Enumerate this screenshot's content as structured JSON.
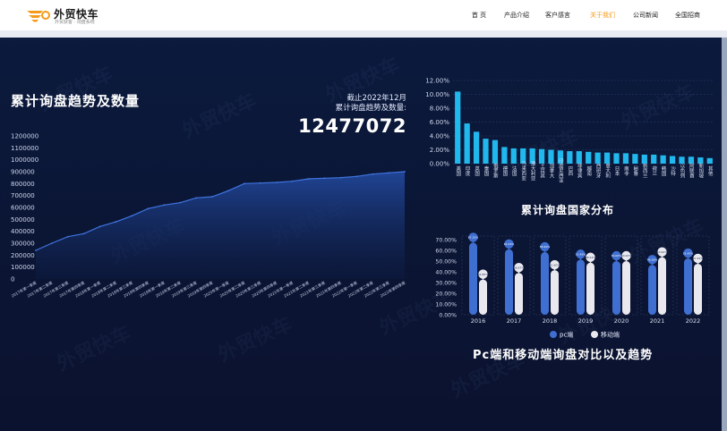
{
  "header": {
    "logo_title": "外贸快车",
    "logo_sub": "外贸获客 · 询盘系统",
    "nav": [
      {
        "label": "首 页",
        "active": false
      },
      {
        "label": "产品介绍",
        "active": false
      },
      {
        "label": "客户感言",
        "active": false
      },
      {
        "label": "关于我们",
        "active": true
      },
      {
        "label": "公司新闻",
        "active": false
      },
      {
        "label": "全国招商",
        "active": false
      }
    ]
  },
  "watermark": "外贸快车",
  "summary": {
    "title": "累计询盘趋势及数量",
    "as_of": "截止2022年12月",
    "label": "累计询盘趋势及数量:",
    "total": "12477072"
  },
  "titles": {
    "country": "累计询盘国家分布",
    "device": "Pc端和移动端询盘对比以及趋势"
  },
  "colors": {
    "accent": "#f39b1a",
    "bar_cyan": "#21b8ee",
    "pc_blue": "#3f6fd1",
    "mobile_white": "#e8e8ee",
    "area_fill": "#1b3c85"
  },
  "chart_data": [
    {
      "type": "area",
      "title": "",
      "y_ticks": [
        "1200000",
        "1100000",
        "1000000",
        "900000",
        "800000",
        "700000",
        "600000",
        "500000",
        "400000",
        "300000",
        "200000",
        "100000",
        "0"
      ],
      "ylim": [
        0,
        1200000
      ],
      "categories": [
        "2017年第一季度",
        "2017年第二季度",
        "2017年第三季度",
        "2017年第四季度",
        "2018年第一季度",
        "2018年第二季度",
        "2018年第三季度",
        "2018年第四季度",
        "2019年第一季度",
        "2019年第二季度",
        "2019年第三季度",
        "2019年第四季度",
        "2020年第一季度",
        "2020年第二季度",
        "2020年第三季度",
        "2020年第四季度",
        "2021年第一季度",
        "2021年第二季度",
        "2021年第三季度",
        "2021年第四季度",
        "2022年第一季度",
        "2022年第二季度",
        "2022年第三季度",
        "2022年第四季度"
      ],
      "values": [
        240000,
        300000,
        355000,
        380000,
        440000,
        480000,
        530000,
        590000,
        620000,
        640000,
        680000,
        690000,
        740000,
        800000,
        805000,
        810000,
        820000,
        840000,
        845000,
        850000,
        860000,
        880000,
        890000,
        900000
      ],
      "grid": false
    },
    {
      "type": "bar",
      "title": "",
      "y_ticks": [
        "12.00%",
        "10.00%",
        "8.00%",
        "6.00%",
        "4.00%",
        "2.00%",
        "0.00%"
      ],
      "ylim": [
        0,
        12
      ],
      "categories": [
        "美国",
        "印度",
        "英国",
        "泰国",
        "俄罗斯",
        "德国",
        "法国",
        "马来西亚",
        "澳大利亚",
        "土耳其",
        "加拿大",
        "印度尼西亚",
        "巴西",
        "菲律宾",
        "越南",
        "西班牙",
        "意大利",
        "日本",
        "南非",
        "秘鲁",
        "新西兰",
        "荷兰",
        "韩国",
        "沙特",
        "以色列",
        "阿联酋",
        "新加坡",
        "其他"
      ],
      "values": [
        10.4,
        5.8,
        4.6,
        3.6,
        3.4,
        2.4,
        2.2,
        2.2,
        2.2,
        2.1,
        2.0,
        1.9,
        1.8,
        1.8,
        1.7,
        1.6,
        1.6,
        1.5,
        1.5,
        1.4,
        1.3,
        1.3,
        1.2,
        1.1,
        1.0,
        1.0,
        0.9,
        0.8
      ],
      "grid": true
    },
    {
      "type": "bar",
      "title": "",
      "y_ticks": [
        "70.00%",
        "60.00%",
        "50.00%",
        "40.00%",
        "30.00%",
        "20.00%",
        "10.00%",
        "0.00%"
      ],
      "ylim": [
        0,
        70
      ],
      "categories": [
        "2016",
        "2017",
        "2018",
        "2019",
        "2020",
        "2021",
        "2022"
      ],
      "series": [
        {
          "name": "pc端",
          "values": [
            67.15,
            61.03,
            58.4,
            51.46,
            50.0,
            46.38,
            52.45
          ],
          "labels": [
            "67.15%",
            "61.03%",
            "58.40%",
            "51.46%",
            "50.00%",
            "46.38%",
            "52.45%"
          ]
        },
        {
          "name": "移动端",
          "values": [
            32.85,
            38.97,
            41.6,
            48.54,
            50.0,
            53.62,
            47.55
          ],
          "labels": [
            "32.85%",
            "38.97%",
            "41.60%",
            "48.54%",
            "50.00%",
            "53.62%",
            "47.55%"
          ]
        }
      ],
      "legend_position": "bottom",
      "grid": false
    }
  ]
}
